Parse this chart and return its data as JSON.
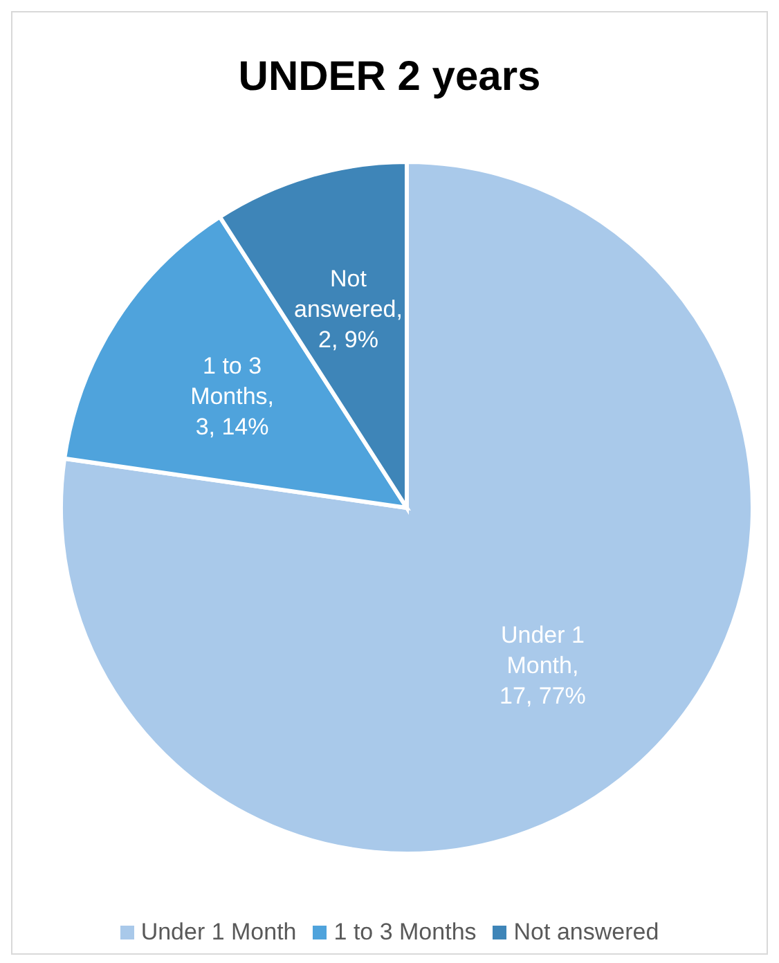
{
  "chart_data": {
    "type": "pie",
    "title": "UNDER 2 years",
    "categories": [
      "Under 1 Month",
      "1 to 3 Months",
      "Not answered"
    ],
    "values": [
      17,
      3,
      2
    ],
    "colors": [
      "#a9c9ea",
      "#4fa3dc",
      "#3e85b8"
    ],
    "value_labels": [
      "Under 1 Month, 17, 77%",
      "1 to 3 Months, 3, 14%",
      "Not answered, 2, 9%"
    ],
    "legend": "bottom"
  }
}
